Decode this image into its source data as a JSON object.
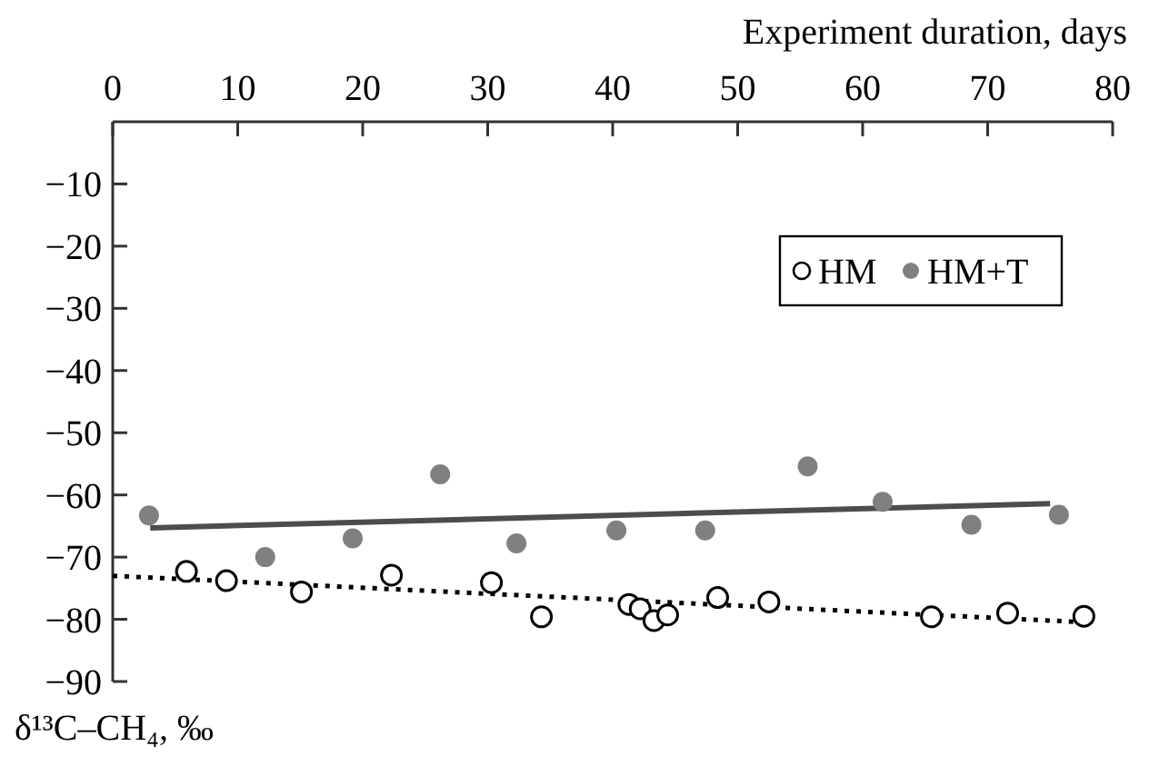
{
  "chart_data": {
    "type": "scatter",
    "xlabel": "Experiment duration, days",
    "ylabel": "δ¹³C–CH₄, ‰",
    "xlim": [
      0,
      80
    ],
    "xticks": [
      0,
      10,
      20,
      30,
      40,
      50,
      60,
      70,
      80
    ],
    "ylim": [
      -90,
      0
    ],
    "yticks": [
      -10,
      -20,
      -30,
      -40,
      -50,
      -60,
      -70,
      -80,
      -90
    ],
    "grid": false,
    "legend": "top right",
    "series": [
      {
        "name": "HM",
        "marker": "circle",
        "color": "#ffffff",
        "x": [
          5.9,
          9.1,
          15.1,
          22.3,
          30.3,
          34.3,
          41.3,
          42.2,
          43.3,
          44.4,
          48.4,
          52.5,
          65.5,
          71.6,
          77.7
        ],
        "values": [
          -72.3,
          -73.8,
          -75.6,
          -72.9,
          -74.1,
          -79.6,
          -77.6,
          -78.3,
          -80.2,
          -79.3,
          -76.5,
          -77.2,
          -79.6,
          -79.0,
          -79.5
        ]
      },
      {
        "name": "HM+T",
        "marker": "circle",
        "color": "#808080",
        "x": [
          2.9,
          12.2,
          19.2,
          26.2,
          32.3,
          40.3,
          47.4,
          55.6,
          61.6,
          68.7,
          75.7
        ],
        "values": [
          -63.3,
          -70.0,
          -67.0,
          -56.7,
          -67.8,
          -65.7,
          -65.7,
          -55.4,
          -61.1,
          -64.8,
          -63.2
        ]
      },
      {
        "type": "line",
        "marker": "none",
        "color": "#000000",
        "line_style": "dotted",
        "x": [
          0,
          77
        ],
        "values": [
          -73,
          -80.4
        ]
      },
      {
        "type": "line",
        "marker": "none",
        "color": "#4d4d4d",
        "line_style": "solid",
        "x": [
          3,
          75
        ],
        "values": [
          -65.3,
          -61.4
        ]
      }
    ]
  }
}
